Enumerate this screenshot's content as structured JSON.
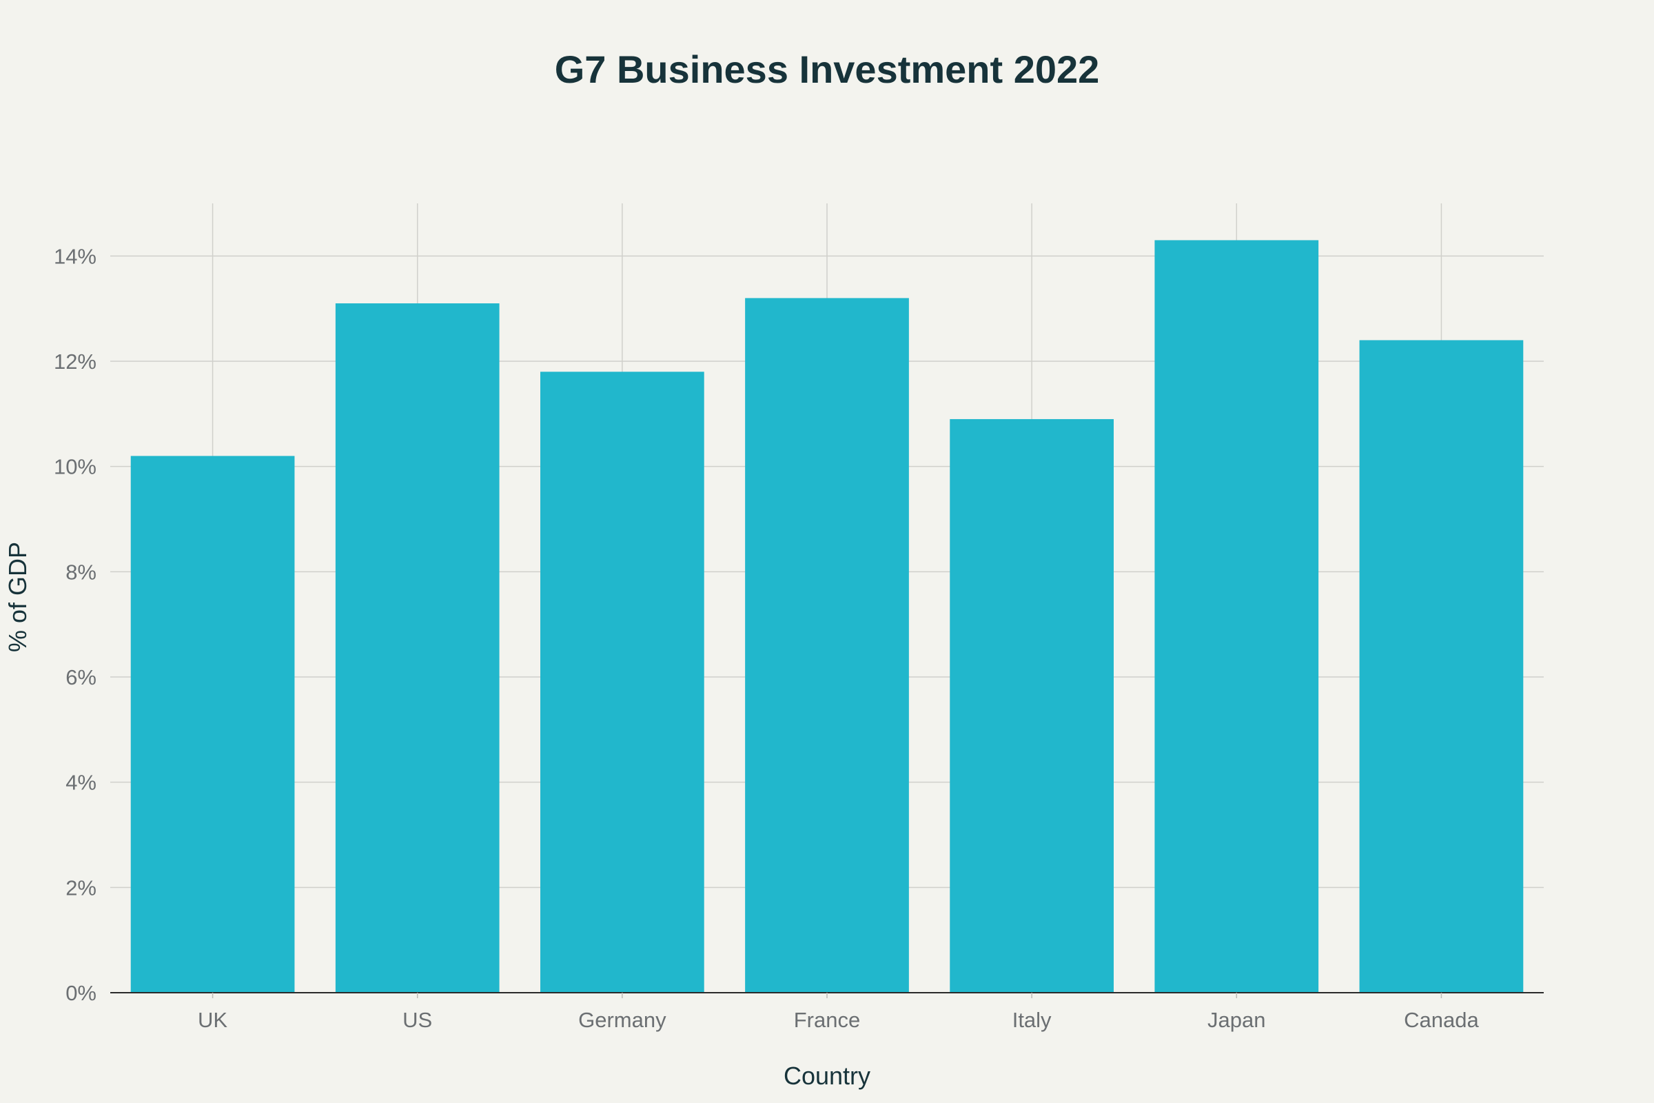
{
  "chart_data": {
    "type": "bar",
    "title": "G7 Business Investment 2022",
    "xlabel": "Country",
    "ylabel": "% of GDP",
    "categories": [
      "UK",
      "US",
      "Germany",
      "France",
      "Italy",
      "Japan",
      "Canada"
    ],
    "values": [
      10.2,
      13.1,
      11.8,
      13.2,
      10.9,
      14.3,
      12.4
    ],
    "ylim": [
      0,
      15
    ],
    "yticks": [
      0,
      2,
      4,
      6,
      8,
      10,
      12,
      14
    ],
    "ytick_labels": [
      "0%",
      "2%",
      "4%",
      "6%",
      "8%",
      "10%",
      "12%",
      "14%"
    ],
    "grid": true,
    "bar_color": "#21b7cc",
    "background_color": "#f3f3ee"
  }
}
